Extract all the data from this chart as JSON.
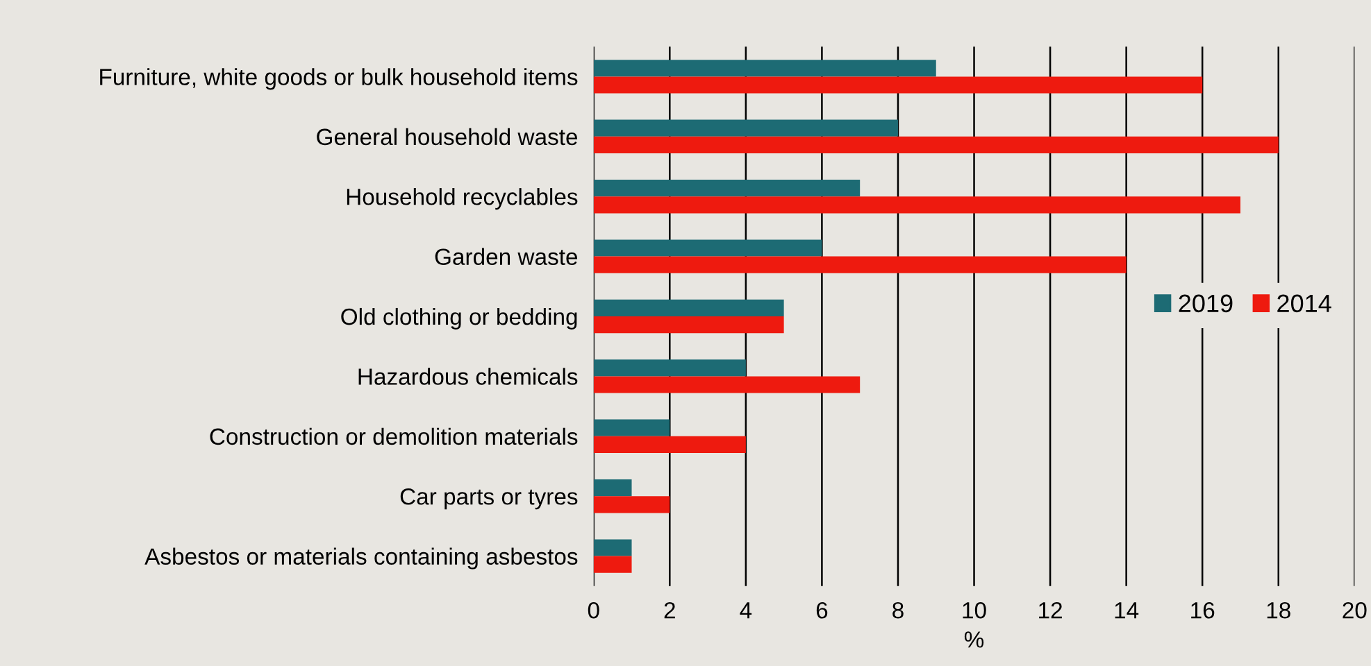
{
  "chart_data": {
    "type": "bar",
    "orientation": "horizontal",
    "xlabel": "%",
    "categories": [
      "Furniture, white goods or bulk household items",
      "General household waste",
      "Household recyclables",
      "Garden waste",
      "Old clothing or bedding",
      "Hazardous chemicals",
      "Construction or demolition materials",
      "Car parts or tyres",
      "Asbestos or materials containing asbestos"
    ],
    "series": [
      {
        "name": "2019",
        "color": "#1d6b74",
        "values": [
          9,
          8,
          7,
          6,
          5,
          4,
          2,
          1,
          1
        ]
      },
      {
        "name": "2014",
        "color": "#ee1a0f",
        "values": [
          16,
          18,
          17,
          14,
          5,
          7,
          4,
          2,
          1
        ]
      }
    ],
    "xlim": [
      0,
      20
    ],
    "xticks": [
      0,
      2,
      4,
      6,
      8,
      10,
      12,
      14,
      16,
      18,
      20
    ],
    "grid": "x",
    "legend": "right"
  }
}
